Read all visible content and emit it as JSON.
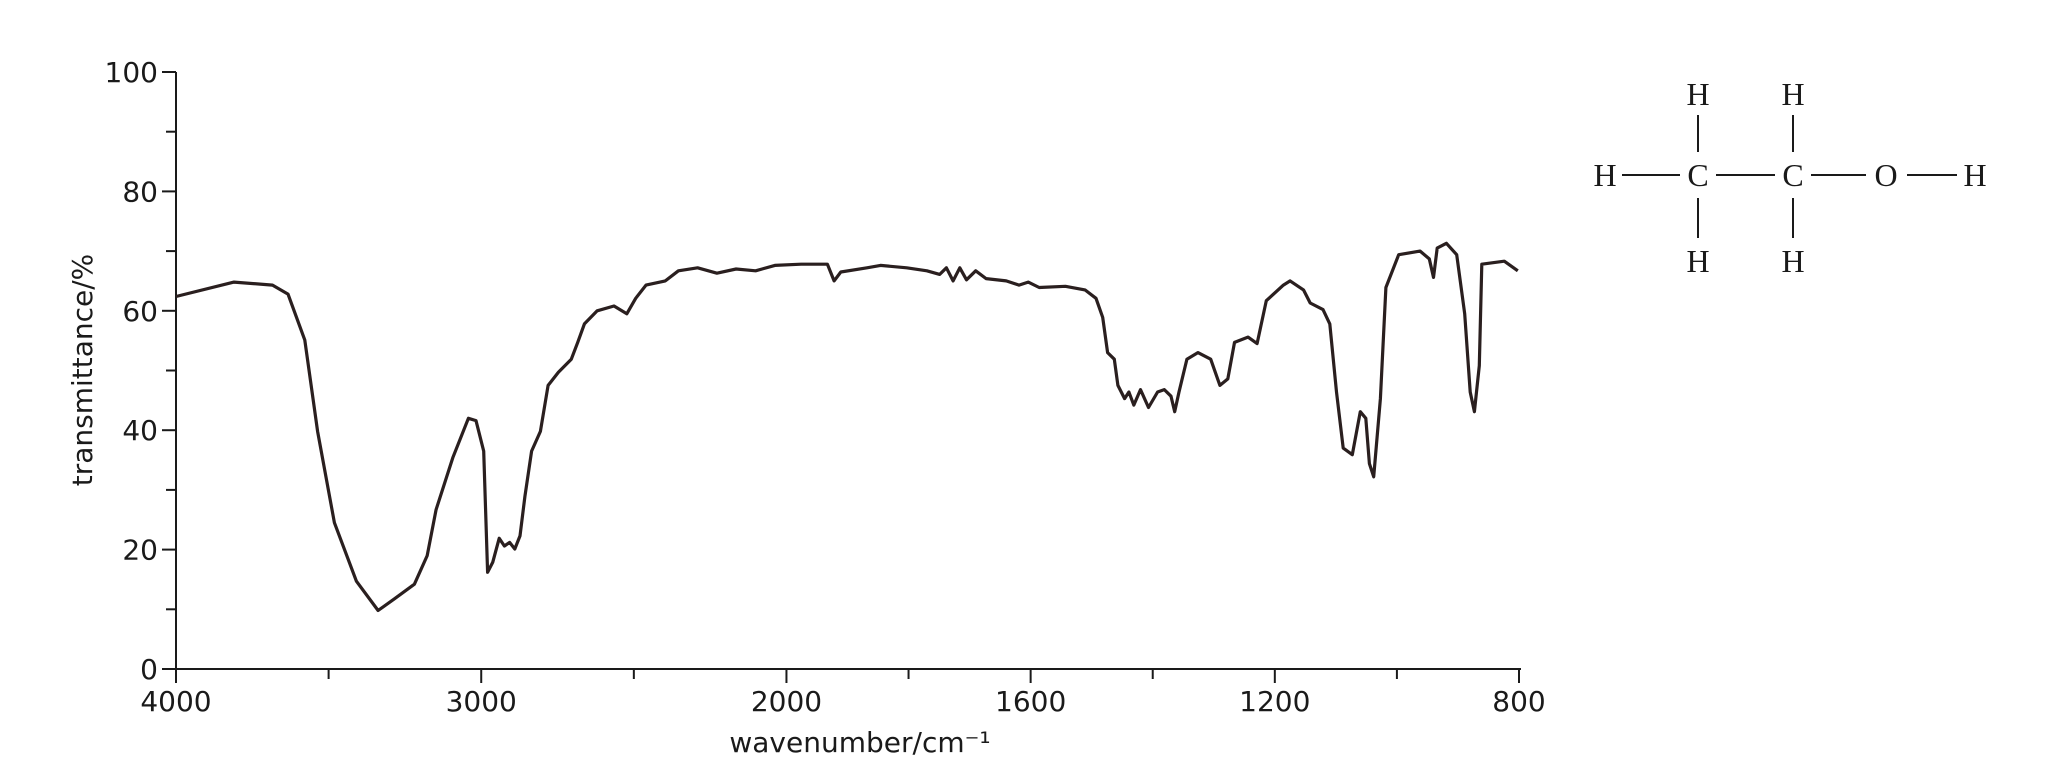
{
  "chart_data": {
    "type": "line",
    "x_label": "wavenumber/cm⁻¹",
    "y_label": "transmittance/%",
    "color": "#2a1f1f",
    "xlim": [
      4000,
      800
    ],
    "ylim": [
      0,
      100
    ],
    "x_scale_break": 2000,
    "x_scale_factor": 2,
    "xticks": [
      4000,
      3000,
      2000,
      1600,
      1200,
      800
    ],
    "xminorticks": [
      3500,
      2500,
      1800,
      1400,
      1000
    ],
    "yticks": [
      0,
      20,
      40,
      60,
      80,
      100
    ],
    "yminorticks": [
      10,
      30,
      50,
      70,
      90
    ],
    "x": [
      4000,
      3810,
      3684,
      3633,
      3578,
      3536,
      3481,
      3409,
      3338,
      3283,
      3219,
      3177,
      3148,
      3093,
      3042,
      3017,
      2992,
      2979,
      2962,
      2941,
      2924,
      2907,
      2890,
      2873,
      2857,
      2835,
      2806,
      2781,
      2747,
      2705,
      2684,
      2662,
      2620,
      2565,
      2523,
      2494,
      2460,
      2397,
      2354,
      2291,
      2228,
      2165,
      2101,
      2038,
      1976,
      1933,
      1922,
      1911,
      1868,
      1846,
      1803,
      1770,
      1749,
      1738,
      1727,
      1716,
      1705,
      1690,
      1673,
      1640,
      1619,
      1604,
      1586,
      1543,
      1511,
      1493,
      1482,
      1474,
      1463,
      1457,
      1446,
      1439,
      1431,
      1420,
      1407,
      1392,
      1381,
      1370,
      1364,
      1357,
      1344,
      1326,
      1305,
      1290,
      1277,
      1266,
      1244,
      1229,
      1214,
      1186,
      1175,
      1153,
      1142,
      1121,
      1110,
      1099,
      1088,
      1073,
      1060,
      1051,
      1045,
      1038,
      1027,
      1018,
      997,
      962,
      947,
      940,
      934,
      919,
      902,
      889,
      880,
      873,
      865,
      861,
      824,
      802
    ],
    "values": [
      62.4,
      64.8,
      64.3,
      62.8,
      55.1,
      39.8,
      24.5,
      14.7,
      9.8,
      11.8,
      14.2,
      19.0,
      26.7,
      35.4,
      42.0,
      41.6,
      36.5,
      16.2,
      17.9,
      21.9,
      20.6,
      21.2,
      20.1,
      22.3,
      28.9,
      36.5,
      39.8,
      47.5,
      49.7,
      51.9,
      54.7,
      57.8,
      60.0,
      60.8,
      59.5,
      62.1,
      64.3,
      65.0,
      66.7,
      67.2,
      66.3,
      67.0,
      66.7,
      67.6,
      67.8,
      67.8,
      65.0,
      66.5,
      67.2,
      67.6,
      67.2,
      66.7,
      66.1,
      67.2,
      65.0,
      67.2,
      65.2,
      66.7,
      65.4,
      65.0,
      64.3,
      64.8,
      63.9,
      64.1,
      63.5,
      62.1,
      58.9,
      53.0,
      51.9,
      47.5,
      45.3,
      46.4,
      44.2,
      46.8,
      43.8,
      46.4,
      46.8,
      45.7,
      43.1,
      46.4,
      51.9,
      53.0,
      51.9,
      47.5,
      48.6,
      54.7,
      55.6,
      54.5,
      61.7,
      64.3,
      65.0,
      63.5,
      61.3,
      60.2,
      57.8,
      46.4,
      37.0,
      35.9,
      43.1,
      42.0,
      34.4,
      32.2,
      45.3,
      63.9,
      69.4,
      70.0,
      68.7,
      65.6,
      70.5,
      71.3,
      69.4,
      59.5,
      46.4,
      43.1,
      50.8,
      67.8,
      68.3,
      66.7
    ],
    "molecule": {
      "atoms": [
        "H",
        "H",
        "H",
        "C",
        "C",
        "O",
        "H",
        "H",
        "H"
      ]
    }
  }
}
